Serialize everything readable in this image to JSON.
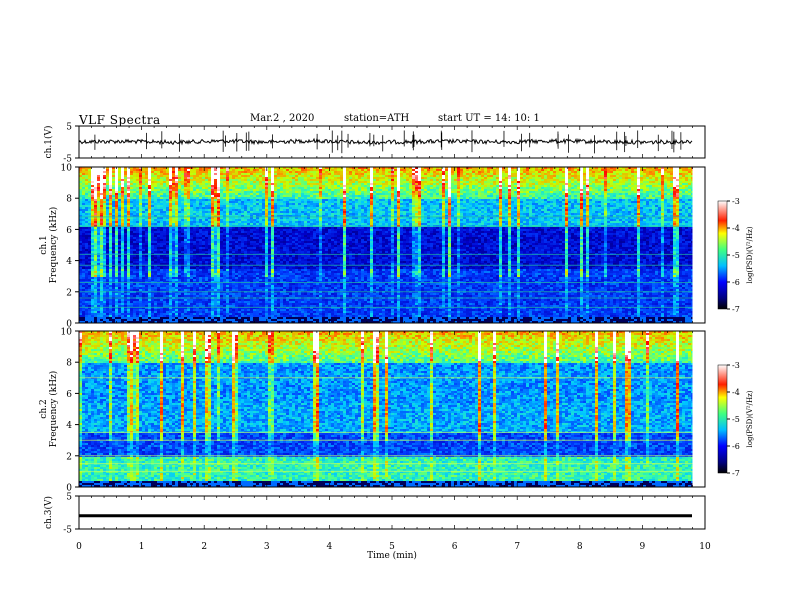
{
  "header": {
    "title": "VLF  Spectra",
    "date": "Mar.2  , 2020",
    "station": "station=ATH",
    "start": "start  UT  =    14: 10: 1"
  },
  "chart_data": [
    {
      "type": "line",
      "panel": "ch1-waveform",
      "ylabel": "ch.1(V)",
      "ylim": [
        -5,
        5
      ],
      "yticks": [
        "5",
        "-5"
      ],
      "xlim": [
        0,
        10
      ],
      "series": [
        {
          "values": [
            0.1,
            0.2,
            -0.1,
            0.3,
            0.0,
            0.4,
            -0.2,
            0.1,
            0.2,
            0.0,
            0.3,
            0.1,
            -0.1,
            0.2
          ]
        }
      ],
      "x_end": 9.8
    },
    {
      "type": "heatmap",
      "panel": "ch1-spectrogram",
      "ylabel": "ch.1\nFrequency (kHz)",
      "ylim": [
        0,
        10
      ],
      "yticks": [
        "0",
        "2",
        "4",
        "6",
        "8",
        "10"
      ],
      "xlim": [
        0,
        10
      ],
      "x_end": 9.8,
      "colorbar": {
        "label": "log(PSD)(V²/Hz)",
        "range": [
          -7,
          -3
        ],
        "ticks": [
          "-3",
          "-4",
          "-5",
          "-6",
          "-7"
        ]
      }
    },
    {
      "type": "heatmap",
      "panel": "ch2-spectrogram",
      "ylabel": "ch.2\nFrequency (kHz)",
      "ylim": [
        0,
        10
      ],
      "yticks": [
        "0",
        "2",
        "4",
        "6",
        "8",
        "10"
      ],
      "xlim": [
        0,
        10
      ],
      "x_end": 9.8,
      "colorbar": {
        "label": "log(PSD)(V²/Hz)",
        "range": [
          -7,
          -3
        ],
        "ticks": [
          "-3",
          "-4",
          "-5",
          "-6",
          "-7"
        ]
      }
    },
    {
      "type": "line",
      "panel": "ch3-waveform",
      "ylabel": "ch.3(V)",
      "ylim": [
        -5,
        5
      ],
      "yticks": [
        "5",
        "-5"
      ],
      "xlim": [
        0,
        10
      ],
      "xticks": [
        "0",
        "1",
        "2",
        "3",
        "4",
        "5",
        "6",
        "7",
        "8",
        "9",
        "10"
      ],
      "xlabel": "Time  (min)",
      "series": [
        {
          "values": [
            -1,
            -1,
            -1,
            -1,
            -1,
            -1,
            -1,
            -1,
            -1,
            -1,
            -1
          ]
        }
      ],
      "x_end": 9.8
    }
  ],
  "colors": {
    "jet": [
      "#00007f",
      "#0000ff",
      "#007fff",
      "#00ffff",
      "#7fff7f",
      "#ffff00",
      "#ff7f00",
      "#ff0000",
      "#ffffff"
    ]
  }
}
